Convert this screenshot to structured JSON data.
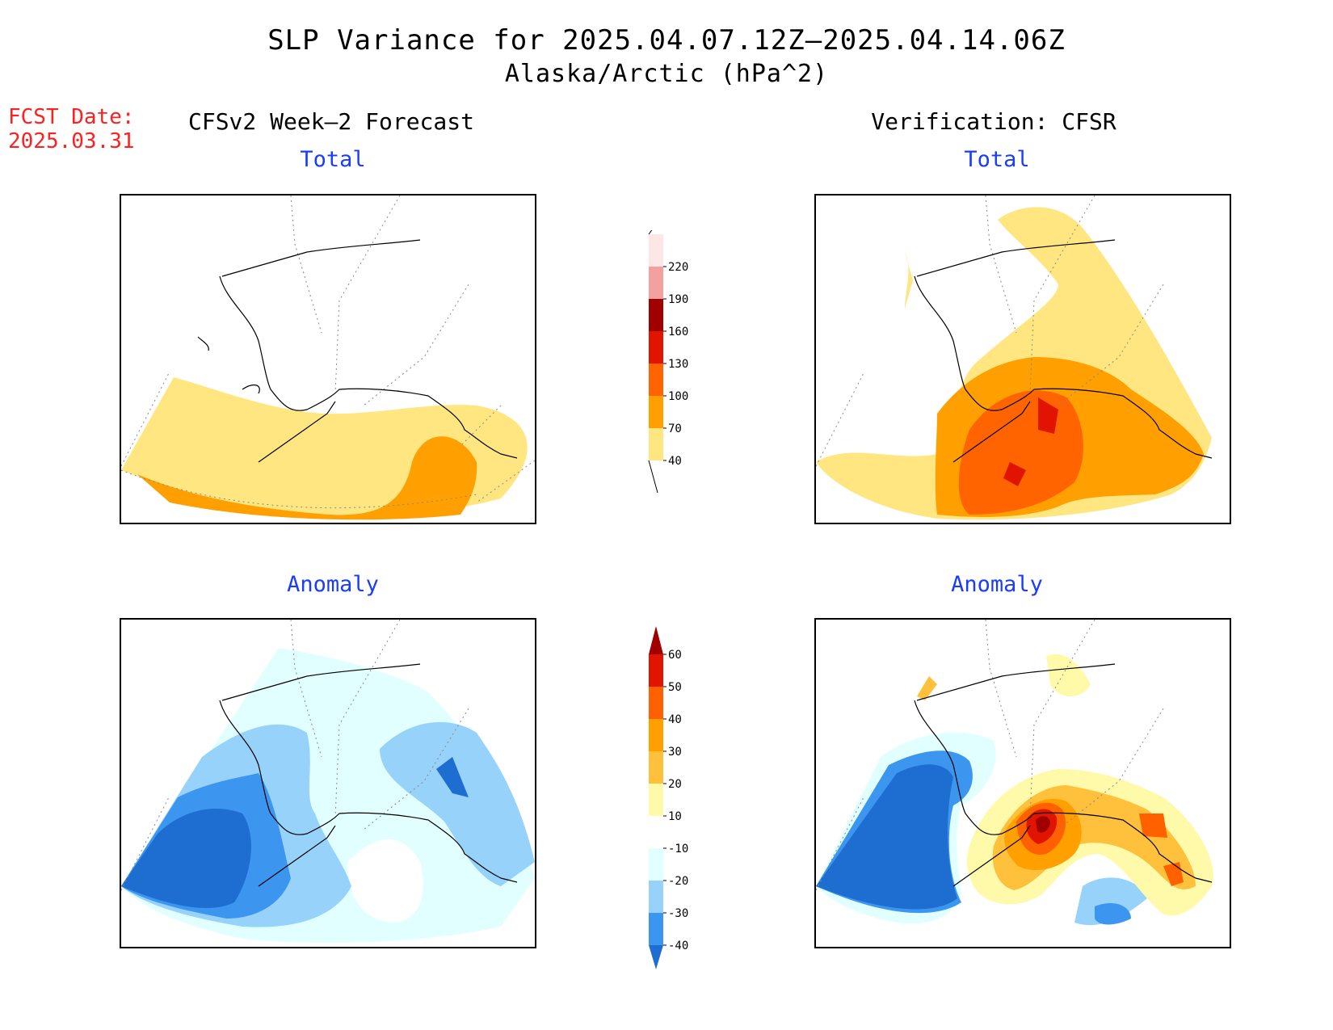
{
  "header": {
    "title": "SLP Variance for 2025.04.07.12Z–2025.04.14.06Z",
    "subtitle": "Alaska/Arctic (hPa^2)"
  },
  "fcst_date": {
    "label": "FCST Date:",
    "value": "2025.03.31"
  },
  "columns": {
    "left_title": "CFSv2 Week–2 Forecast",
    "right_title": "Verification: CFSR"
  },
  "panels": {
    "forecast_total_title": "Total",
    "forecast_anomaly_title": "Anomaly",
    "verification_total_title": "Total",
    "verification_anomaly_title": "Anomaly"
  },
  "colorbars": {
    "total": {
      "levels": [
        "40",
        "70",
        "100",
        "130",
        "160",
        "190",
        "220"
      ],
      "colors": [
        "#ffe680",
        "#ffa000",
        "#ff6400",
        "#e01400",
        "#a00000",
        "#f4a0a0",
        "#fde6e6"
      ],
      "below_color": "#ffffff"
    },
    "anomaly": {
      "levels": [
        "-40",
        "-30",
        "-20",
        "-10",
        "10",
        "20",
        "30",
        "40",
        "50",
        "60"
      ],
      "colors": [
        "#1e6ed2",
        "#3c96f0",
        "#96d2fa",
        "#e1ffff",
        "#ffffff",
        "#fffaaa",
        "#ffc03c",
        "#ffa000",
        "#ff6000",
        "#e01400",
        "#a00000"
      ]
    }
  },
  "colors": {
    "title_text": "#000000",
    "subtitle_blue": "#1a3cff",
    "fcst_red": "#ff2020"
  }
}
